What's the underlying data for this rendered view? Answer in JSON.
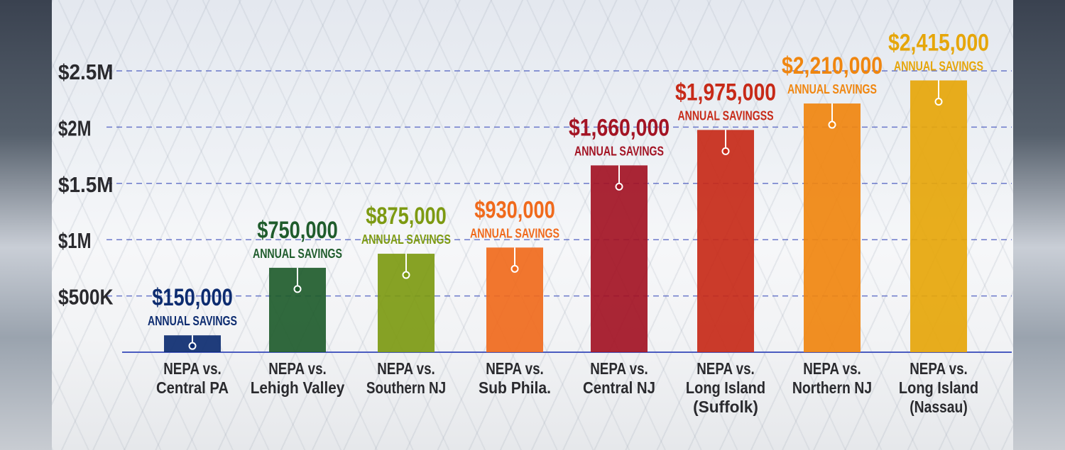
{
  "chart_data": {
    "type": "bar",
    "title": "",
    "xlabel": "",
    "ylabel": "",
    "ylim": [
      0,
      2500000
    ],
    "y_ticks": [
      {
        "value": 500000,
        "label": "$500K"
      },
      {
        "value": 1000000,
        "label": "$1M"
      },
      {
        "value": 1500000,
        "label": "$1.5M"
      },
      {
        "value": 2000000,
        "label": "$2M"
      },
      {
        "value": 2500000,
        "label": "$2.5M"
      }
    ],
    "grid": "dashed horizontal",
    "categories": [
      [
        "NEPA vs.",
        "Central PA"
      ],
      [
        "NEPA vs.",
        "Lehigh Valley"
      ],
      [
        "NEPA vs.",
        "Southern NJ"
      ],
      [
        "NEPA vs.",
        "Sub Phila."
      ],
      [
        "NEPA vs.",
        "Central NJ"
      ],
      [
        "NEPA vs.",
        "Long Island",
        "(Suffolk)"
      ],
      [
        "NEPA vs.",
        "Northern NJ"
      ],
      [
        "NEPA vs.",
        "Long Island",
        "(Nassau)"
      ]
    ],
    "values": [
      150000,
      750000,
      875000,
      930000,
      1660000,
      1975000,
      2210000,
      2415000
    ],
    "value_labels": [
      "$150,000",
      "$750,000",
      "$875,000",
      "$930,000",
      "$1,660,000",
      "$1,975,000",
      "$2,210,000",
      "$2,415,000"
    ],
    "sub_labels": [
      "ANNUAL SAVINGS",
      "ANNUAL SAVINGS",
      "ANNUAL SAVINGS",
      "ANNUAL SAVINGS",
      "ANNUAL SAVINGS",
      "ANNUAL SAVINGSS",
      "ANNUAL SAVINGS",
      "ANNUAL SAVINGS"
    ],
    "colors": [
      "#0d2c70",
      "#1f5c2c",
      "#7d9a12",
      "#f06a1c",
      "#a31424",
      "#c72a18",
      "#f0860f",
      "#e6a60a"
    ],
    "grid_color": "#4a5bc0",
    "axis_label_color": "#2a2a2e"
  }
}
